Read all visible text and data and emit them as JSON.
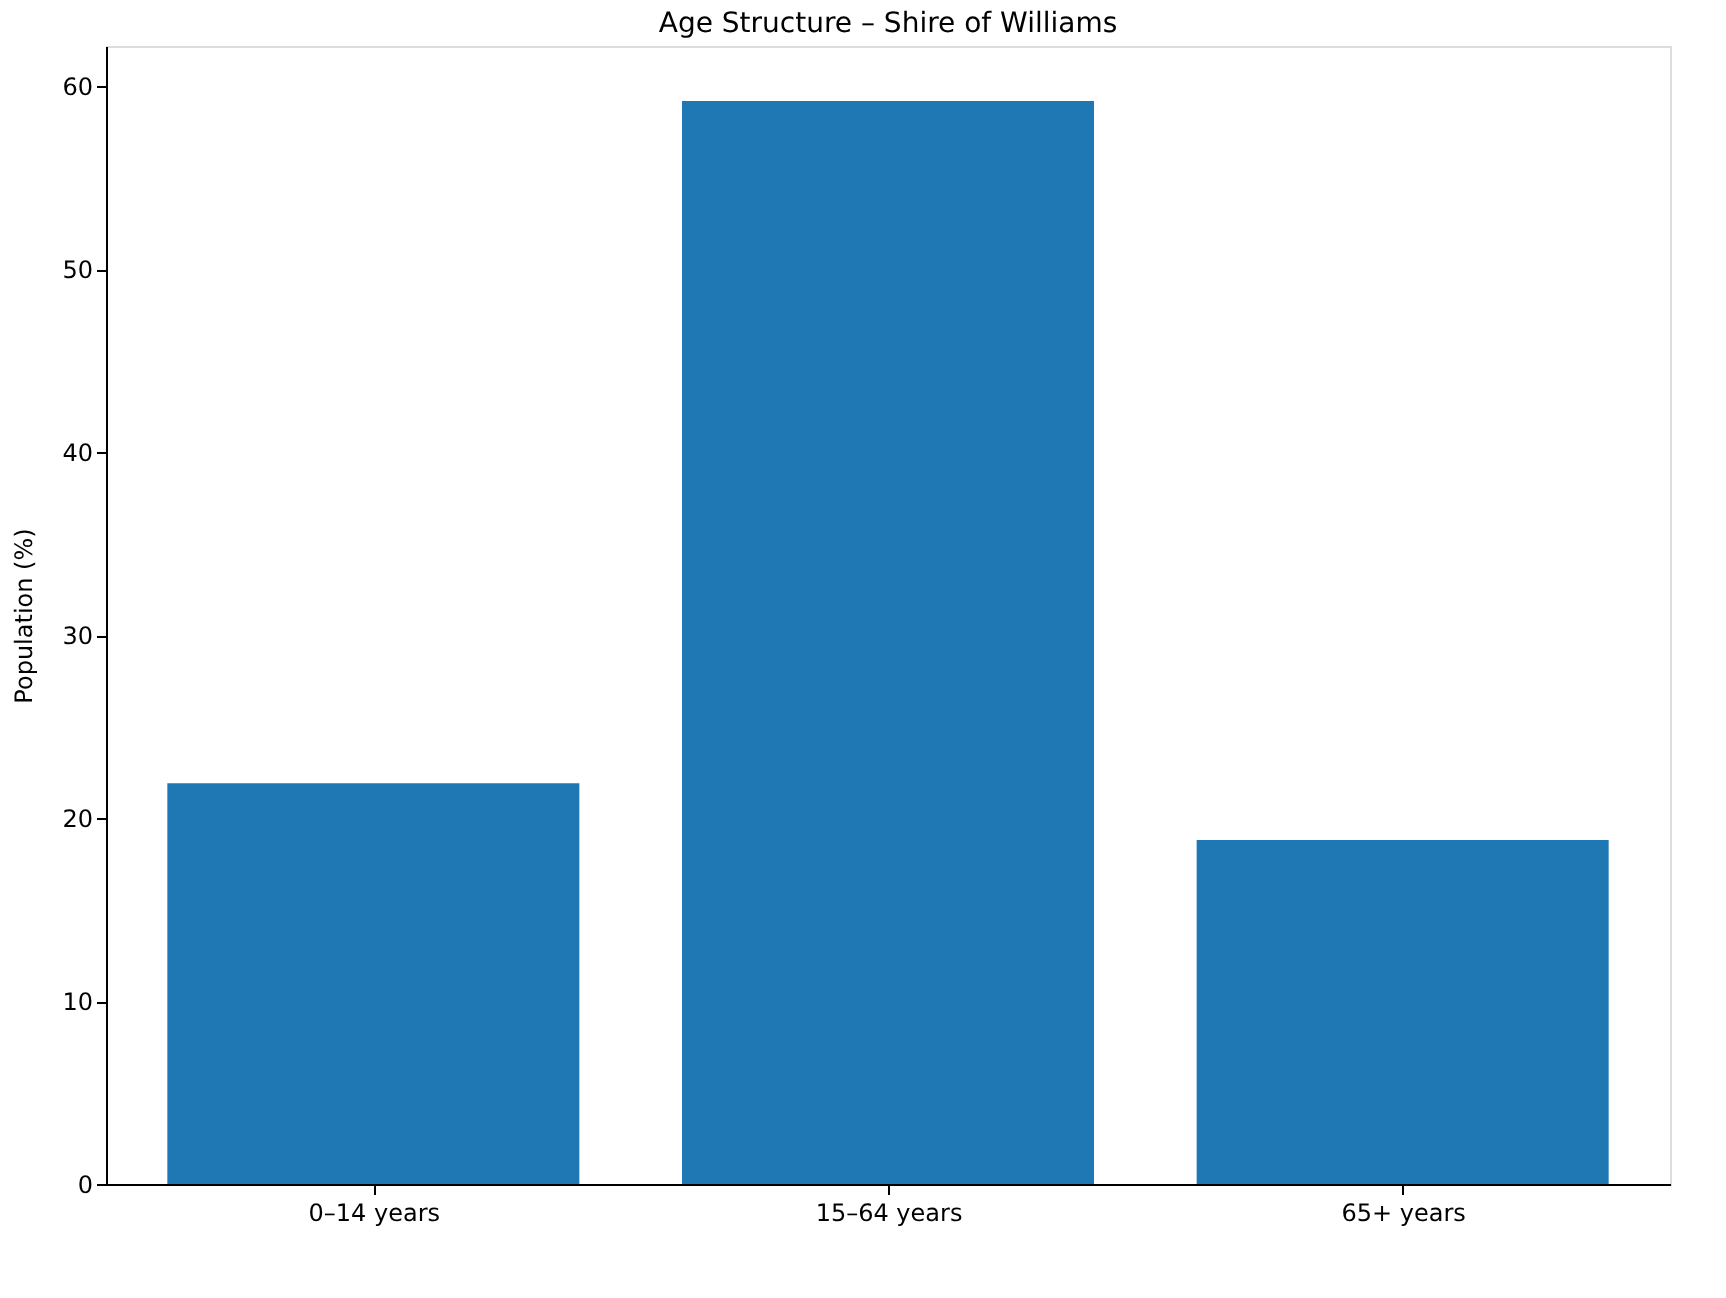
{
  "chart_data": {
    "type": "bar",
    "title": "Age Structure – Shire of Williams",
    "ylabel": "Population (%)",
    "categories": [
      "0–14 years",
      "15–64 years",
      "65+ years"
    ],
    "values": [
      21.9,
      59.2,
      18.8
    ],
    "color": "#1f77b4",
    "ylim": [
      0,
      62.2
    ],
    "yticks": [
      0,
      10,
      20,
      30,
      40,
      50,
      60
    ],
    "grid": false
  }
}
